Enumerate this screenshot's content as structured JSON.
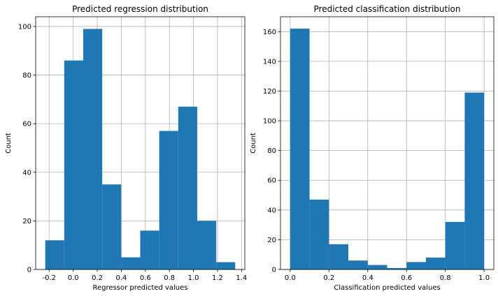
{
  "chart_data": [
    {
      "type": "bar",
      "title": "Predicted regression distribution",
      "xlabel": "Regressor predicted values",
      "ylabel": "Count",
      "bin_edges": [
        -0.2326,
        -0.0746,
        0.0834,
        0.2414,
        0.3994,
        0.5574,
        0.7154,
        0.8734,
        1.0314,
        1.1894,
        1.3474
      ],
      "values": [
        12,
        86,
        99,
        35,
        5,
        16,
        57,
        67,
        20,
        3
      ],
      "xlim": [
        -0.312,
        1.427
      ],
      "ylim": [
        0,
        104
      ],
      "xticks": [
        -0.2,
        0.0,
        0.2,
        0.4,
        0.6,
        0.8,
        1.0,
        1.2,
        1.4
      ],
      "xtick_labels": [
        "-0.2",
        "0.0",
        "0.2",
        "0.4",
        "0.6",
        "0.8",
        "1.0",
        "1.2",
        "1.4"
      ],
      "yticks": [
        0,
        20,
        40,
        60,
        80,
        100
      ],
      "ytick_labels": [
        "0",
        "20",
        "40",
        "60",
        "80",
        "100"
      ],
      "grid": true,
      "color": "#1f77b4"
    },
    {
      "type": "bar",
      "title": "Predicted classification distribution",
      "xlabel": "Classification predicted values",
      "ylabel": "Count",
      "bin_edges": [
        0.0,
        0.1,
        0.2,
        0.3,
        0.4,
        0.5,
        0.6,
        0.7,
        0.8,
        0.9,
        1.0
      ],
      "values": [
        162,
        47,
        17,
        6,
        3,
        1,
        5,
        8,
        32,
        119
      ],
      "xlim": [
        -0.05,
        1.05
      ],
      "ylim": [
        0,
        170
      ],
      "xticks": [
        0.0,
        0.2,
        0.4,
        0.6,
        0.8,
        1.0
      ],
      "xtick_labels": [
        "0.0",
        "0.2",
        "0.4",
        "0.6",
        "0.8",
        "1.0"
      ],
      "yticks": [
        0,
        20,
        40,
        60,
        80,
        100,
        120,
        140,
        160
      ],
      "ytick_labels": [
        "0",
        "20",
        "40",
        "60",
        "80",
        "100",
        "120",
        "140",
        "160"
      ],
      "grid": true,
      "color": "#1f77b4"
    }
  ]
}
